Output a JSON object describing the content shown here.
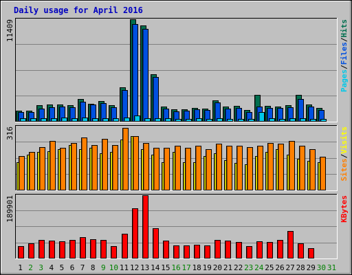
{
  "chart_data": {
    "type": "bar",
    "title": "Daily usage for April 2016",
    "days": [
      1,
      2,
      3,
      4,
      5,
      6,
      7,
      8,
      9,
      10,
      11,
      12,
      13,
      14,
      15,
      16,
      17,
      18,
      19,
      20,
      21,
      22,
      23,
      24,
      25,
      26,
      27,
      28,
      29,
      30,
      31
    ],
    "weekend_days": [
      2,
      3,
      9,
      10,
      16,
      17,
      23,
      24,
      30,
      31
    ],
    "panels": [
      {
        "id": "top",
        "ymax": 11409,
        "ylabel_max": "11409",
        "legend": [
          "Pages",
          "/",
          "Files",
          "/",
          "Hits"
        ],
        "series": [
          {
            "name": "Hits",
            "color": "#006f4f",
            "values": [
              1220,
              1250,
              1850,
              1900,
              1900,
              1850,
              2500,
              2000,
              2300,
              1800,
              3800,
              11400,
              10700,
              5300,
              1700,
              1350,
              1350,
              1550,
              1450,
              2400,
              1700,
              1750,
              1300,
              3000,
              1750,
              1650,
              1800,
              2950,
              1950,
              1500,
              0
            ]
          },
          {
            "name": "Files",
            "color": "#0050e0",
            "values": [
              1050,
              1100,
              1450,
              1600,
              1650,
              1600,
              2250,
              1900,
              2050,
              1600,
              3500,
              10900,
              10300,
              5000,
              1450,
              1150,
              1250,
              1350,
              1300,
              2150,
              1450,
              1500,
              1100,
              1650,
              1500,
              1500,
              1600,
              2550,
              1650,
              1300,
              0
            ]
          },
          {
            "name": "Pages",
            "color": "#00c8e8",
            "values": [
              350,
              350,
              380,
              400,
              450,
              380,
              450,
              380,
              400,
              350,
              450,
              700,
              420,
              380,
              350,
              300,
              330,
              360,
              330,
              360,
              330,
              340,
              300,
              1100,
              350,
              330,
              350,
              380,
              330,
              330,
              0
            ]
          }
        ]
      },
      {
        "id": "middle",
        "ymax": 316,
        "ylabel_max": "316",
        "legend": [
          "Sites",
          "/",
          "Visits"
        ],
        "series": [
          {
            "name": "Visits",
            "color": "#ffff00",
            "values": [
              140,
              175,
              190,
              195,
              205,
              225,
              205,
              210,
              185,
              190,
              250,
              270,
              205,
              175,
              140,
              190,
              140,
              140,
              170,
              185,
              150,
              135,
              130,
              170,
              190,
              205,
              175,
              155,
              145,
              140,
              0
            ]
          },
          {
            "name": "Sites",
            "color": "#ff8000",
            "values": [
              170,
              190,
              215,
              245,
              210,
              235,
              260,
              225,
              255,
              225,
              310,
              270,
              235,
              210,
              210,
              220,
              210,
              220,
              205,
              230,
              220,
              220,
              215,
              220,
              235,
              230,
              245,
              220,
              205,
              165,
              0
            ]
          }
        ]
      },
      {
        "id": "bottom",
        "ymax": 189901,
        "ylabel_max": "189901",
        "legend": [
          "KBytes"
        ],
        "series": [
          {
            "name": "KBytes",
            "color": "#ff0000",
            "values": [
              37000,
              45000,
              55000,
              54000,
              51000,
              55000,
              64000,
              57000,
              55000,
              37000,
              74000,
              150000,
              189901,
              91000,
              54000,
              40000,
              40000,
              41000,
              40000,
              56000,
              54000,
              49000,
              38000,
              51000,
              49000,
              55000,
              82000,
              45000,
              31000,
              0,
              0
            ]
          }
        ]
      }
    ]
  }
}
